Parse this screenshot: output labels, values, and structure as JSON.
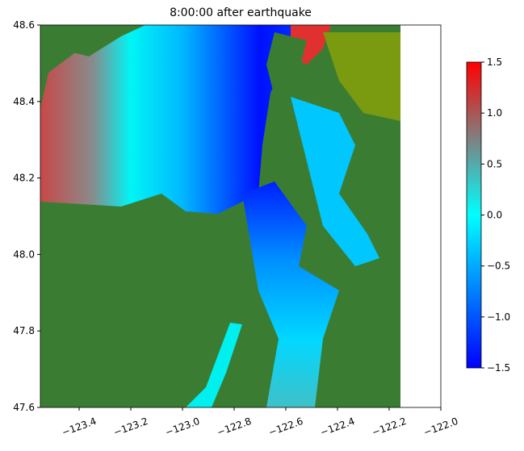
{
  "chart_data": {
    "type": "heatmap",
    "title": "8:00:00 after earthquake",
    "xlim": [
      -123.55,
      -122.0
    ],
    "xticks": [
      {
        "value": -123.4,
        "label": "−123.4"
      },
      {
        "value": -123.2,
        "label": "−123.2"
      },
      {
        "value": -123.0,
        "label": "−123.0"
      },
      {
        "value": -122.8,
        "label": "−122.8"
      },
      {
        "value": -122.6,
        "label": "−122.6"
      },
      {
        "value": -122.4,
        "label": "−122.4"
      },
      {
        "value": -122.2,
        "label": "−122.2"
      },
      {
        "value": -122.0,
        "label": "−122.0"
      }
    ],
    "ylim": [
      47.6,
      48.6
    ],
    "yticks": [
      {
        "value": 47.6,
        "label": "47.6"
      },
      {
        "value": 47.8,
        "label": "47.8"
      },
      {
        "value": 48.0,
        "label": "48.0"
      },
      {
        "value": 48.2,
        "label": "48.2"
      },
      {
        "value": 48.4,
        "label": "48.4"
      },
      {
        "value": 48.6,
        "label": "48.6"
      }
    ],
    "colorbar": {
      "lim": [
        -1.5,
        1.5
      ],
      "ticks": [
        {
          "value": -1.5,
          "label": "−1.5"
        },
        {
          "value": -1.0,
          "label": "−1.0"
        },
        {
          "value": -0.5,
          "label": "−0.5"
        },
        {
          "value": 0.0,
          "label": "0.0"
        },
        0.5,
        {
          "value": 1.0,
          "label": "1.0"
        },
        1.5
      ],
      "colors": [
        "#0000ff",
        "#0080ff",
        "#00ffff",
        "#808080",
        "#ff0000"
      ]
    }
  }
}
